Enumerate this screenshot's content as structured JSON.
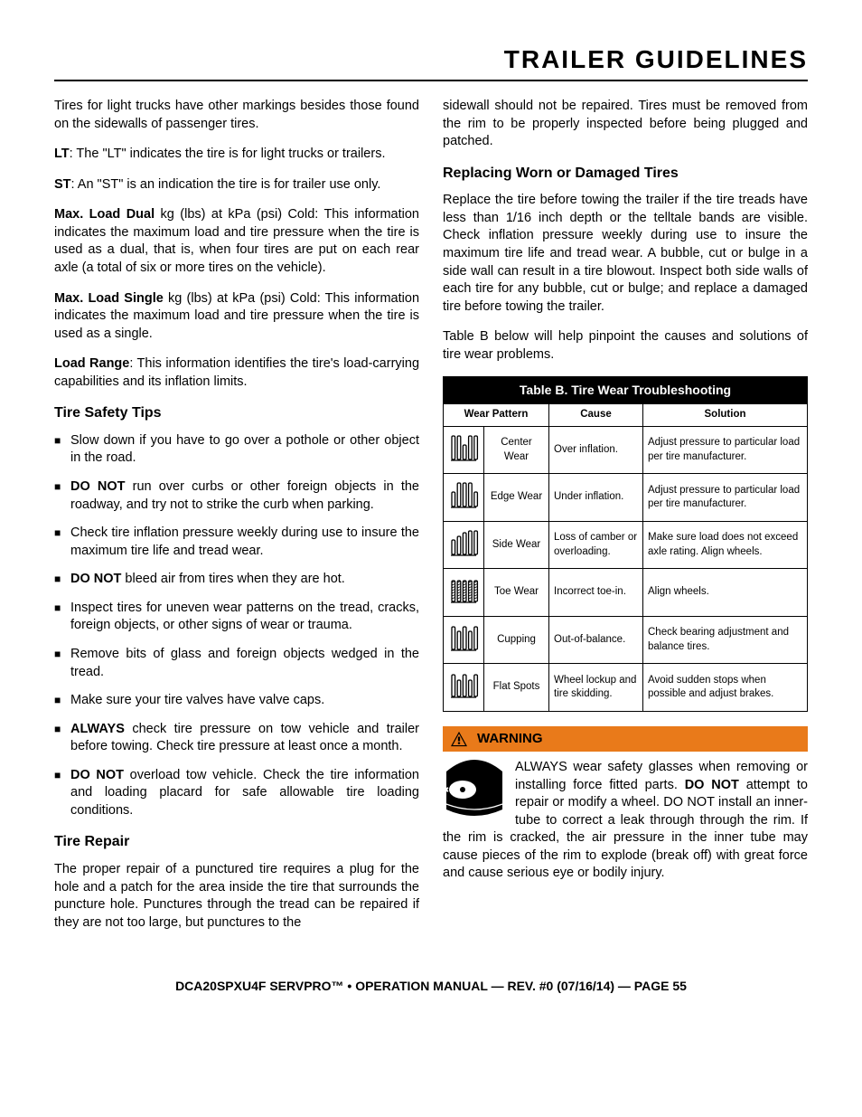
{
  "page_title": "TRAILER GUIDELINES",
  "left": {
    "intro": "Tires for light trucks have other markings besides those found on the sidewalls of passenger tires.",
    "lt_bold": "LT",
    "lt_text": ": The \"LT\" indicates the tire is for light trucks or trailers.",
    "st_bold": "ST",
    "st_text": ": An \"ST\" is an indication the tire is for trailer use only.",
    "mld_bold": "Max. Load Dual",
    "mld_text": " kg (lbs) at kPa (psi) Cold: This information indicates the maximum load and tire pressure when the tire is used as a dual, that is, when four tires are put on each rear axle (a total of six or more tires on the vehicle).",
    "mls_bold": "Max. Load Single",
    "mls_text": " kg (lbs) at kPa (psi) Cold: This information indicates the maximum load and tire pressure when the tire is used as a single.",
    "lr_bold": "Load Range",
    "lr_text": ": This information identifies the tire's load-carrying capabilities and its inflation limits.",
    "safety_h": "Tire Safety Tips",
    "tips": [
      {
        "pre": "",
        "bold": "",
        "post": "Slow down if you have to go over a pothole or other object in the road."
      },
      {
        "pre": "",
        "bold": "DO NOT",
        "post": " run over curbs or other foreign objects in the roadway, and try not to strike the curb when parking."
      },
      {
        "pre": "",
        "bold": "",
        "post": "Check tire inflation pressure weekly during use to insure the maximum tire life and tread wear."
      },
      {
        "pre": "",
        "bold": "DO NOT",
        "post": " bleed air from tires when they are hot."
      },
      {
        "pre": "",
        "bold": "",
        "post": "Inspect tires for uneven wear patterns on the tread, cracks, foreign objects, or other signs of wear or trauma."
      },
      {
        "pre": "",
        "bold": "",
        "post": "Remove bits of glass and foreign objects wedged in the tread."
      },
      {
        "pre": "",
        "bold": "",
        "post": "Make sure your tire valves have valve caps."
      },
      {
        "pre": "",
        "bold": "ALWAYS",
        "post": " check tire pressure on tow vehicle and trailer before towing. Check tire pressure at least once a month."
      },
      {
        "pre": "",
        "bold": "DO NOT",
        "post": " overload tow vehicle. Check the tire information and loading placard for safe allowable tire loading conditions."
      }
    ],
    "repair_h": "Tire Repair",
    "repair_p": "The proper repair of a punctured tire requires a plug for the hole and a patch for the area inside the tire that surrounds the puncture hole. Punctures through the tread can be repaired if they are not too large, but punctures to the"
  },
  "right": {
    "cont": "sidewall should not be repaired. Tires must be removed from the rim to be properly inspected before being plugged and patched.",
    "replace_h": "Replacing Worn or Damaged Tires",
    "replace_p": "Replace the tire before towing the trailer if the tire treads have less than 1/16 inch depth or the telltale bands are visible. Check inflation pressure weekly during use to insure the maximum tire life and tread wear.  A bubble, cut or bulge in a side wall can result in a tire blowout.  Inspect both side walls of each tire for any bubble, cut or bulge; and replace a damaged tire before towing the trailer.",
    "table_intro": "Table B below will help pinpoint the causes and solutions of tire wear problems.",
    "table": {
      "caption": "Table B. Tire Wear Troubleshooting",
      "headers": {
        "pattern": "Wear Pattern",
        "cause": "Cause",
        "solution": "Solution"
      },
      "rows": [
        {
          "pattern": "Center Wear",
          "cause": "Over inflation.",
          "solution": "Adjust pressure to particular load per tire manufacturer."
        },
        {
          "pattern": "Edge Wear",
          "cause": "Under inflation.",
          "solution": "Adjust pressure to particular load per tire manufacturer."
        },
        {
          "pattern": "Side Wear",
          "cause": "Loss of camber or overloading.",
          "solution": "Make sure load does not exceed axle rating. Align wheels."
        },
        {
          "pattern": "Toe Wear",
          "cause": "Incorrect toe-in.",
          "solution": "Align wheels."
        },
        {
          "pattern": "Cupping",
          "cause": "Out-of-balance.",
          "solution": "Check bearing adjustment and balance tires."
        },
        {
          "pattern": "Flat Spots",
          "cause": "Wheel lockup and tire skidding.",
          "solution": "Avoid sudden stops when possible and adjust brakes."
        }
      ]
    },
    "warning": {
      "label": "WARNING",
      "pre": "ALWAYS wear safety glasses when removing or installing force fitted parts. ",
      "bold1": "DO NOT",
      "mid": " attempt to repair or modify a wheel. DO NOT install an inner-tube to correct a leak through through the rim. If the rim is cracked, the air pressure in the inner tube may cause pieces of the rim to explode (break off) with great force and cause serious eye or bodily injury."
    }
  },
  "footer": "DCA20SPXU4F SERVPRO™ • OPERATION MANUAL — REV. #0 (07/16/14) — PAGE 55",
  "style": {
    "accent": "#e97a1a",
    "text": "#000000",
    "bg": "#ffffff"
  }
}
